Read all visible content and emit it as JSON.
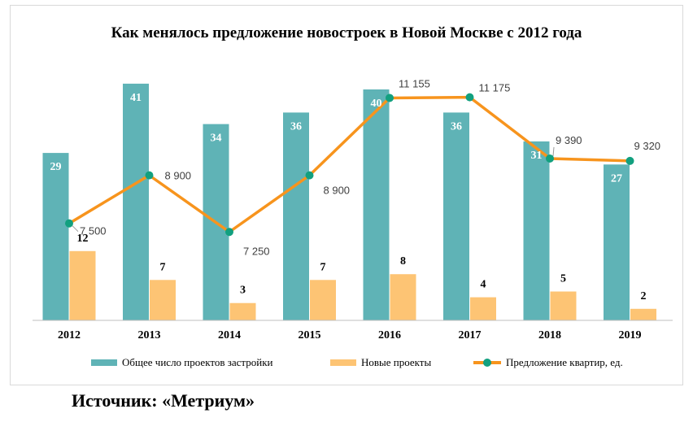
{
  "colors": {
    "total": "#5fb3b6",
    "new": "#fdc474",
    "line": "#f7941d",
    "marker": "#12a07f",
    "axis": "#bfbfbf"
  },
  "chart_data": {
    "type": "bar",
    "title": "Как менялось предложение новостроек  в Новой  Москве с 2012 года",
    "categories": [
      "2012",
      "2013",
      "2014",
      "2015",
      "2016",
      "2017",
      "2018",
      "2019"
    ],
    "series": [
      {
        "name": "Общее число проектов застройки",
        "type": "bar",
        "values": [
          29,
          41,
          34,
          36,
          40,
          36,
          31,
          27
        ],
        "labels": [
          "29",
          "41",
          "34",
          "36",
          "40",
          "36",
          "31",
          "27"
        ]
      },
      {
        "name": "Новые проекты",
        "type": "bar",
        "values": [
          12,
          7,
          3,
          7,
          8,
          4,
          5,
          2
        ],
        "labels": [
          "12",
          "7",
          "3",
          "7",
          "8",
          "4",
          "5",
          "2"
        ]
      },
      {
        "name": "Предложение квартир, ед.",
        "type": "line",
        "values": [
          7500,
          8900,
          7250,
          8900,
          11155,
          11175,
          9390,
          9320
        ],
        "labels": [
          "7 500",
          "8 900",
          "7 250",
          "8 900",
          "11 155",
          "11 175",
          "9 390",
          "9 320"
        ]
      }
    ],
    "legend_position": "bottom",
    "grid": false
  },
  "source": "Источник: «Метриум»"
}
